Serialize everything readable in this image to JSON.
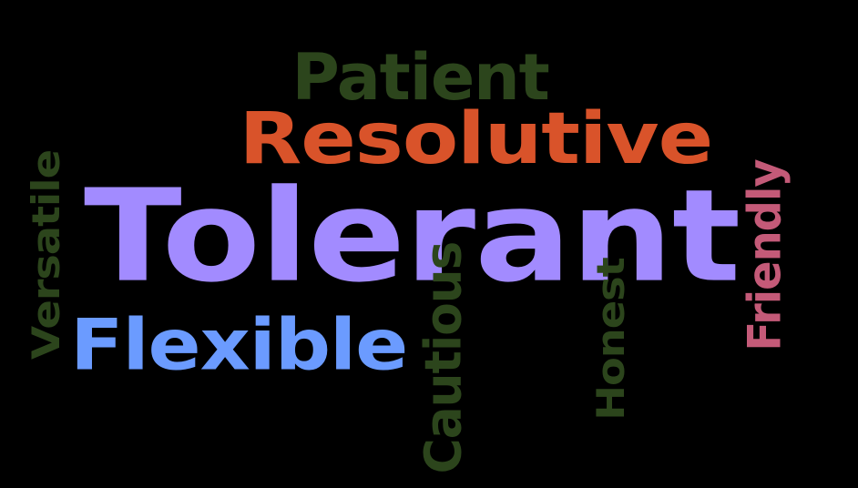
{
  "words": [
    {
      "id": "tolerant",
      "text": "Tolerant",
      "color": "#a28bff",
      "orientation": "horizontal"
    },
    {
      "id": "resolutive",
      "text": "Resolutive",
      "color": "#d9532a",
      "orientation": "horizontal"
    },
    {
      "id": "flexible",
      "text": "Flexible",
      "color": "#6b9bff",
      "orientation": "horizontal"
    },
    {
      "id": "patient",
      "text": "Patient",
      "color": "#2c451c",
      "orientation": "horizontal"
    },
    {
      "id": "cautious",
      "text": "Cautious",
      "color": "#2c451c",
      "orientation": "vertical"
    },
    {
      "id": "friendly",
      "text": "Friendly",
      "color": "#c45a78",
      "orientation": "vertical"
    },
    {
      "id": "versatile",
      "text": "Versatile",
      "color": "#2c451c",
      "orientation": "vertical"
    },
    {
      "id": "honest",
      "text": "Honest",
      "color": "#2c451c",
      "orientation": "vertical"
    }
  ]
}
